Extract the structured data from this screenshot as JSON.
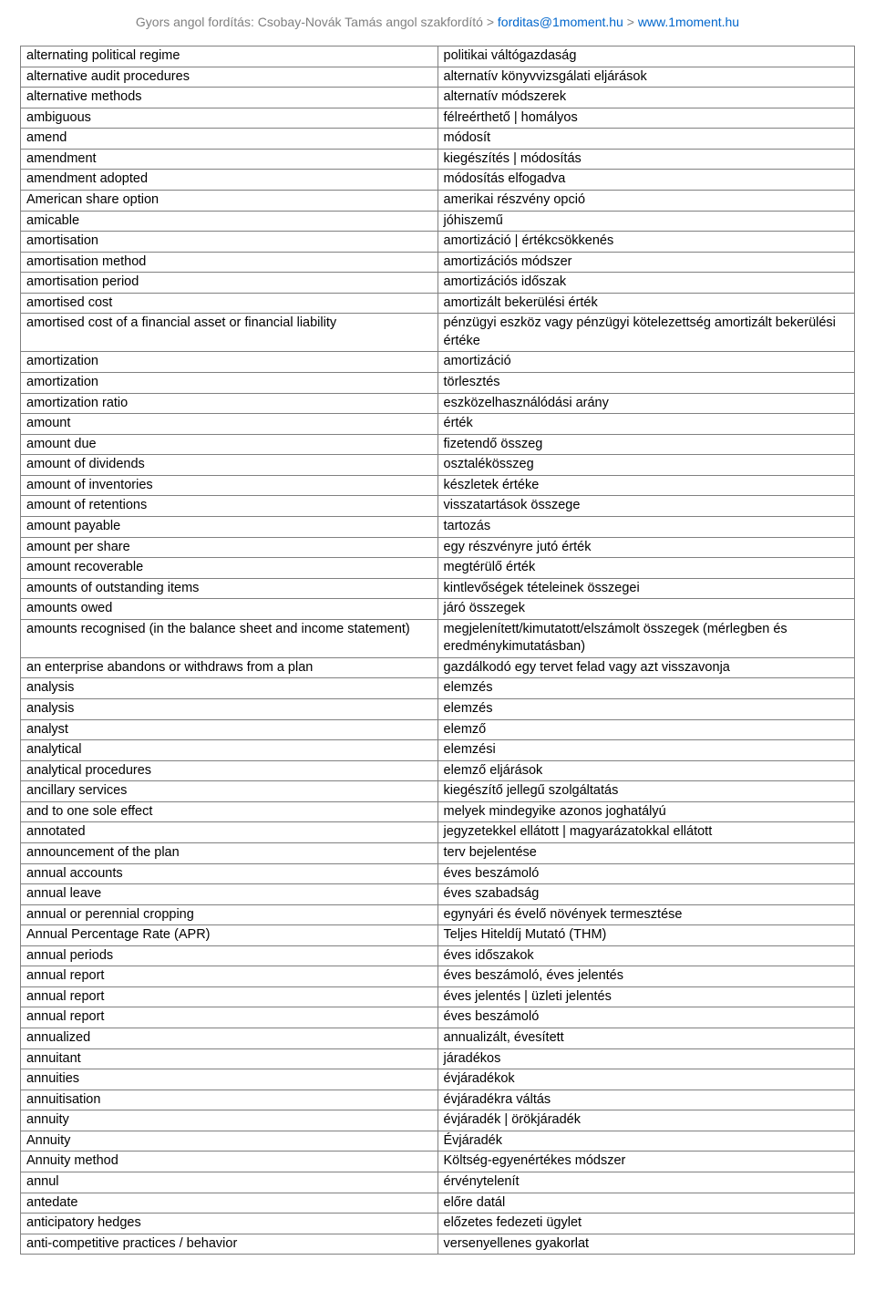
{
  "header": {
    "prefix": "Gyors angol fordítás: Csobay-Novák Tamás angol szakfordító > ",
    "email": "forditas@1moment.hu",
    "sep": " > ",
    "url": "www.1moment.hu"
  },
  "table": {
    "rows": [
      [
        "alternating political regime",
        "politikai váltógazdaság"
      ],
      [
        "alternative audit procedures",
        "alternatív könyvvizsgálati eljárások"
      ],
      [
        "alternative methods",
        "alternatív módszerek"
      ],
      [
        "ambiguous",
        "félreérthető | homályos"
      ],
      [
        "amend",
        "módosít"
      ],
      [
        "amendment",
        "kiegészítés | módosítás"
      ],
      [
        "amendment adopted",
        "módosítás elfogadva"
      ],
      [
        "American share option",
        "amerikai részvény opció"
      ],
      [
        "amicable",
        "jóhiszemű"
      ],
      [
        "amortisation",
        "amortizáció | értékcsökkenés"
      ],
      [
        "amortisation method",
        "amortizációs módszer"
      ],
      [
        "amortisation period",
        "amortizációs időszak"
      ],
      [
        "amortised cost",
        "amortizált bekerülési érték"
      ],
      [
        "amortised cost of a financial asset or financial liability",
        "pénzügyi eszköz vagy pénzügyi kötelezettség amortizált bekerülési értéke"
      ],
      [
        "amortization",
        "amortizáció"
      ],
      [
        "amortization",
        "törlesztés"
      ],
      [
        "amortization ratio",
        "eszközelhasználódási arány"
      ],
      [
        "amount",
        "érték"
      ],
      [
        "amount due",
        "fizetendő összeg"
      ],
      [
        "amount of dividends",
        "osztalékösszeg"
      ],
      [
        "amount of inventories",
        "készletek értéke"
      ],
      [
        "amount of retentions",
        "visszatartások összege"
      ],
      [
        "amount payable",
        "tartozás"
      ],
      [
        "amount per share",
        "egy részvényre jutó érték"
      ],
      [
        "amount recoverable",
        "megtérülő érték"
      ],
      [
        "amounts of outstanding items",
        "kintlevőségek tételeinek összegei"
      ],
      [
        "amounts owed",
        "járó összegek"
      ],
      [
        "amounts recognised (in the balance sheet and income statement)",
        "megjelenített/kimutatott/elszámolt összegek (mérlegben és eredménykimutatásban)"
      ],
      [
        "an enterprise abandons or withdraws from a plan",
        "gazdálkodó egy tervet felad vagy azt visszavonja"
      ],
      [
        "analysis",
        "elemzés"
      ],
      [
        "analysis",
        "elemzés"
      ],
      [
        "analyst",
        "elemző"
      ],
      [
        "analytical",
        "elemzési"
      ],
      [
        "analytical procedures",
        "elemző eljárások"
      ],
      [
        "ancillary services",
        "kiegészítő jellegű szolgáltatás"
      ],
      [
        "and to one sole effect",
        "melyek mindegyike azonos joghatályú"
      ],
      [
        "annotated",
        "jegyzetekkel ellátott | magyarázatokkal ellátott"
      ],
      [
        "announcement of the plan",
        "terv bejelentése"
      ],
      [
        "annual accounts",
        "éves beszámoló"
      ],
      [
        "annual leave",
        "éves szabadság"
      ],
      [
        "annual or perennial cropping",
        "egynyári és évelő növények termesztése"
      ],
      [
        "Annual Percentage Rate (APR)",
        "Teljes Hiteldíj Mutató (THM)"
      ],
      [
        "annual periods",
        "éves időszakok"
      ],
      [
        "annual report",
        "éves beszámoló, éves jelentés"
      ],
      [
        "annual report",
        "éves jelentés | üzleti jelentés"
      ],
      [
        "annual report",
        "éves beszámoló"
      ],
      [
        "annualized",
        "annualizált, évesített"
      ],
      [
        "annuitant",
        "járadékos"
      ],
      [
        "annuities",
        "évjáradékok"
      ],
      [
        "annuitisation",
        "évjáradékra váltás"
      ],
      [
        "annuity",
        "évjáradék | örökjáradék"
      ],
      [
        "Annuity",
        "Évjáradék"
      ],
      [
        "Annuity method",
        "Költség-egyenértékes módszer"
      ],
      [
        "annul",
        "érvénytelenít"
      ],
      [
        "antedate",
        "előre datál"
      ],
      [
        "anticipatory hedges",
        "előzetes fedezeti ügylet"
      ],
      [
        "anti-competitive practices / behavior",
        "versenyellenes gyakorlat"
      ]
    ]
  }
}
